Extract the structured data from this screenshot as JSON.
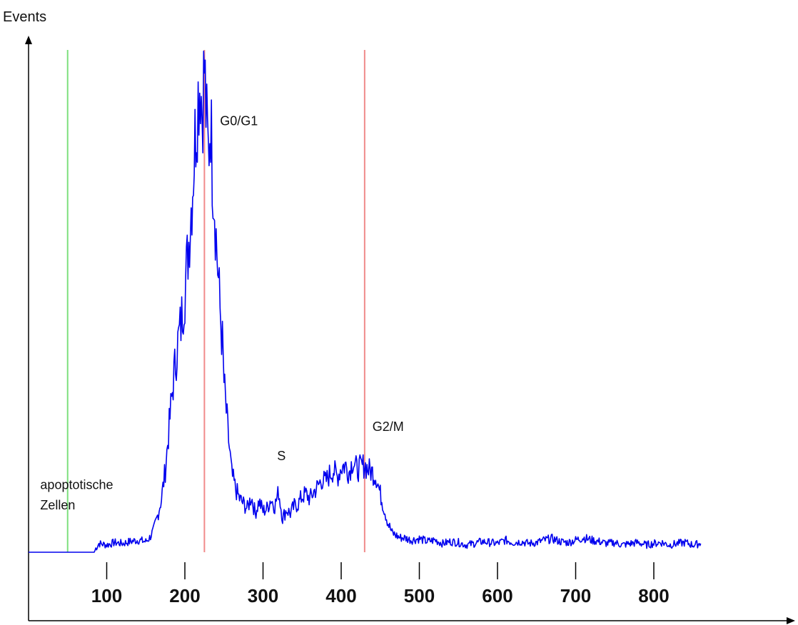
{
  "chart_data": {
    "type": "line",
    "ylabel": "Events",
    "xlabel": "",
    "xlim": [
      0,
      880
    ],
    "ylim": [
      0,
      1000
    ],
    "x_ticks": [
      100,
      200,
      300,
      400,
      500,
      600,
      700,
      800
    ],
    "x_tick_labels": [
      "100",
      "200",
      "300",
      "400",
      "500",
      "600",
      "700",
      "800"
    ],
    "grid": false,
    "series": [
      {
        "color": "#0000ee",
        "x": [
          0,
          30,
          60,
          84,
          86,
          90,
          100,
          110,
          120,
          130,
          140,
          150,
          155,
          160,
          165,
          170,
          175,
          180,
          185,
          190,
          195,
          200,
          205,
          210,
          213,
          215,
          218,
          220,
          222,
          225,
          228,
          230,
          233,
          235,
          238,
          240,
          243,
          245,
          248,
          250,
          255,
          260,
          265,
          270,
          275,
          280,
          285,
          290,
          295,
          300,
          305,
          310,
          315,
          320,
          325,
          330,
          335,
          340,
          345,
          350,
          355,
          360,
          365,
          370,
          375,
          380,
          385,
          390,
          395,
          400,
          405,
          410,
          415,
          420,
          425,
          430,
          435,
          440,
          445,
          450,
          455,
          460,
          465,
          470,
          475,
          480,
          490,
          500,
          510,
          520,
          530,
          540,
          550,
          560,
          570,
          580,
          590,
          600,
          610,
          620,
          630,
          640,
          650,
          660,
          670,
          680,
          690,
          700,
          710,
          720,
          730,
          740,
          750,
          760,
          770,
          780,
          790,
          800,
          810,
          820,
          830,
          840,
          850,
          860
        ],
        "y": [
          0,
          0,
          0,
          0,
          8,
          18,
          15,
          20,
          18,
          22,
          25,
          22,
          30,
          45,
          75,
          110,
          170,
          260,
          350,
          420,
          470,
          540,
          640,
          760,
          850,
          900,
          960,
          980,
          910,
          1000,
          870,
          820,
          900,
          800,
          720,
          650,
          560,
          500,
          430,
          350,
          250,
          160,
          130,
          110,
          100,
          90,
          115,
          80,
          105,
          85,
          90,
          110,
          95,
          125,
          70,
          88,
          80,
          95,
          100,
          115,
          120,
          110,
          125,
          135,
          150,
          145,
          160,
          170,
          155,
          175,
          180,
          165,
          190,
          170,
          175,
          180,
          170,
          165,
          155,
          120,
          90,
          60,
          40,
          35,
          30,
          30,
          25,
          28,
          22,
          25,
          18,
          22,
          20,
          15,
          18,
          22,
          20,
          18,
          25,
          20,
          22,
          18,
          20,
          25,
          28,
          22,
          20,
          25,
          30,
          25,
          22,
          18,
          20,
          15,
          18,
          20,
          15,
          18,
          20,
          15,
          18,
          20,
          15,
          18
        ]
      }
    ],
    "markers": [
      {
        "x": 50,
        "color": "#7ee07e"
      },
      {
        "x": 225,
        "color": "#f08a8a"
      },
      {
        "x": 430,
        "color": "#f08a8a"
      }
    ],
    "annotations": [
      {
        "text": "G0/G1",
        "x": 245,
        "y": 880
      },
      {
        "text": "S",
        "x": 318,
        "y": 190
      },
      {
        "text": "G2/M",
        "x": 440,
        "y": 250
      },
      {
        "text": "apoptotische",
        "x": 15,
        "y": 130
      },
      {
        "text": "Zellen",
        "x": 15,
        "y": 88
      }
    ]
  }
}
